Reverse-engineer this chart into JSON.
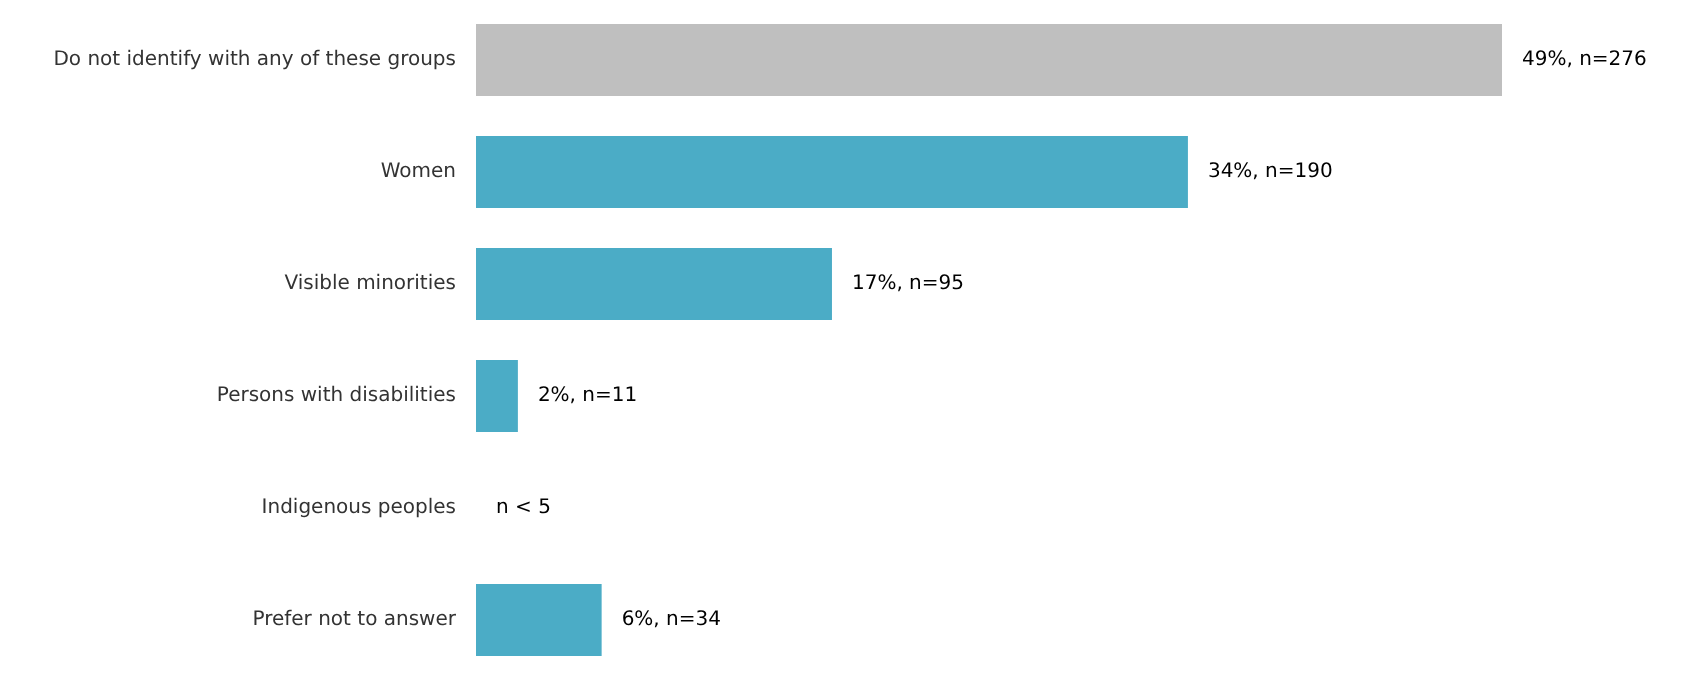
{
  "chart_data": {
    "type": "bar",
    "orientation": "horizontal",
    "categories": [
      "Do not identify with any of these groups",
      "Women",
      "Visible minorities",
      "Persons with disabilities",
      "Indigenous peoples",
      "Prefer not to answer"
    ],
    "values": [
      49,
      34,
      17,
      2,
      null,
      6
    ],
    "colors": [
      "#bfbfbf",
      "#4bacc6",
      "#4bacc6",
      "#4bacc6",
      "#4bacc6",
      "#4bacc6"
    ],
    "value_labels": [
      "49%, n=276",
      "34%, n=190",
      "17%, n=95",
      "2%, n=11",
      "n < 5",
      "6%, n=34"
    ]
  }
}
